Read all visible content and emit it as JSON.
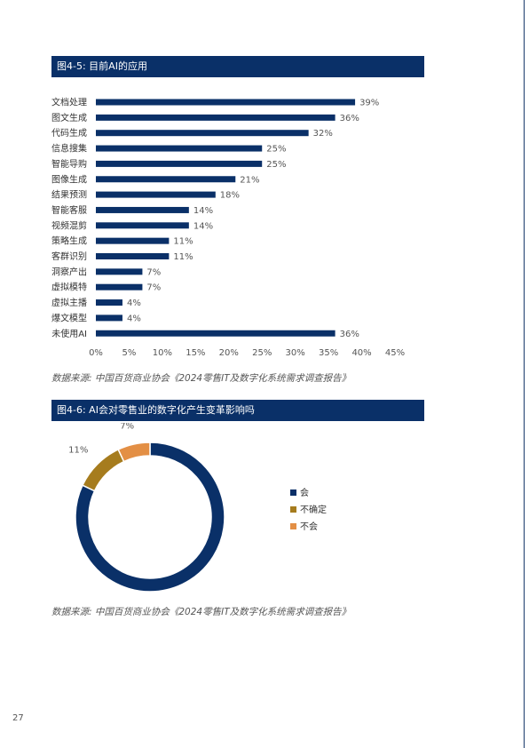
{
  "page_number": "27",
  "figure1": {
    "title": "图4-5: 目前AI的应用",
    "source": "数据来源: 中国百货商业协会《2024零售IT及数字化系统需求调查报告》"
  },
  "figure2": {
    "title": "图4-6: AI会对零售业的数字化产生变革影响吗",
    "source": "数据来源: 中国百货商业协会《2024零售IT及数字化系统需求调查报告》"
  },
  "chart_data": [
    {
      "type": "bar",
      "orientation": "horizontal",
      "categories": [
        "文档处理",
        "图文生成",
        "代码生成",
        "信息搜集",
        "智能导购",
        "图像生成",
        "结果预测",
        "智能客服",
        "视频混剪",
        "策略生成",
        "客群识别",
        "洞察产出",
        "虚拟模特",
        "虚拟主播",
        "爆文模型",
        "未使用AI"
      ],
      "values": [
        39,
        36,
        32,
        25,
        25,
        21,
        18,
        14,
        14,
        11,
        11,
        7,
        7,
        4,
        4,
        36
      ],
      "value_labels": [
        "39%",
        "36%",
        "32%",
        "25%",
        "25%",
        "21%",
        "18%",
        "14%",
        "14%",
        "11%",
        "11%",
        "7%",
        "7%",
        "4%",
        "4%",
        "36%"
      ],
      "xlim": [
        0,
        45
      ],
      "xticks": [
        "0%",
        "5%",
        "10%",
        "15%",
        "20%",
        "25%",
        "30%",
        "35%",
        "40%",
        "45%"
      ],
      "grid": false,
      "colors": {
        "bar": "#0a3068"
      }
    },
    {
      "type": "pie",
      "style": "donut",
      "labels": [
        "会",
        "不确定",
        "不会"
      ],
      "values": [
        82,
        11,
        7
      ],
      "value_labels": [
        "82%",
        "11%",
        "7%"
      ],
      "colors": [
        "#0a3068",
        "#a67c1e",
        "#e38f45"
      ],
      "legend_position": "right"
    }
  ]
}
